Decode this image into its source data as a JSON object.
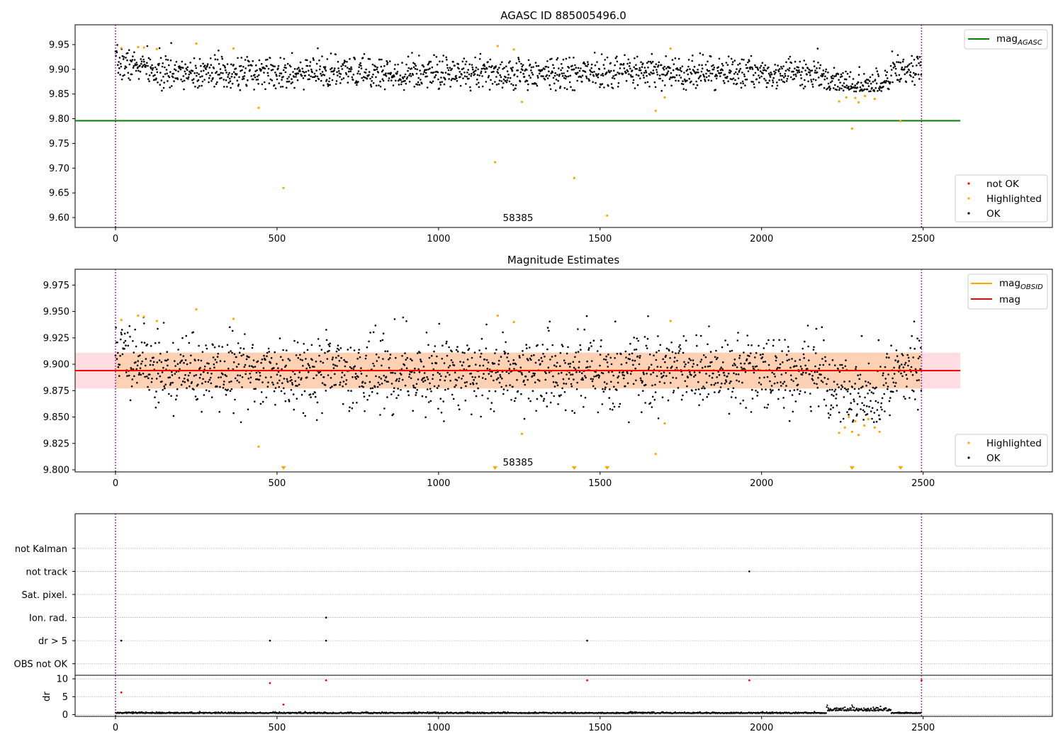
{
  "chart_data": [
    {
      "type": "scatter",
      "title": "AGASC ID 885005496.0",
      "xlim": [
        -125,
        2900
      ],
      "ylim": [
        9.58,
        9.99
      ],
      "xticks": [
        0,
        500,
        1000,
        1500,
        2000,
        2500
      ],
      "yticks": [
        9.6,
        9.65,
        9.7,
        9.75,
        9.8,
        9.85,
        9.9,
        9.95
      ],
      "vlines": [
        0,
        2495
      ],
      "annotation": {
        "text": "58385",
        "x": 1250,
        "y": 9.585
      },
      "hline": {
        "name": "mag_AGASC",
        "value": 9.796,
        "color": "#008000"
      },
      "series": [
        {
          "name": "not OK",
          "color": "#ff0000",
          "points": []
        },
        {
          "name": "Highlighted",
          "color": "#ffa500",
          "points": [
            [
              18,
              9.943
            ],
            [
              70,
              9.945
            ],
            [
              88,
              9.944
            ],
            [
              128,
              9.941
            ],
            [
              250,
              9.952
            ],
            [
              365,
              9.942
            ],
            [
              443,
              9.822
            ],
            [
              520,
              9.66
            ],
            [
              1175,
              9.712
            ],
            [
              1183,
              9.947
            ],
            [
              1233,
              9.94
            ],
            [
              1258,
              9.834
            ],
            [
              1420,
              9.68
            ],
            [
              1522,
              9.604
            ],
            [
              1672,
              9.816
            ],
            [
              1700,
              9.843
            ],
            [
              1718,
              9.942
            ],
            [
              2240,
              9.835
            ],
            [
              2262,
              9.843
            ],
            [
              2280,
              9.78
            ],
            [
              2290,
              9.842
            ],
            [
              2300,
              9.833
            ],
            [
              2320,
              9.846
            ],
            [
              2350,
              9.84
            ],
            [
              2430,
              9.795
            ]
          ]
        },
        {
          "name": "OK",
          "color": "#000000",
          "points": []
        }
      ],
      "legend": {
        "line_entries": [
          "mag_AGASC"
        ],
        "marker_entries": [
          "not OK",
          "Highlighted",
          "OK"
        ]
      }
    },
    {
      "type": "scatter",
      "title": "Magnitude Estimates",
      "xlim": [
        -125,
        2900
      ],
      "ylim": [
        9.798,
        9.99
      ],
      "xticks": [
        0,
        500,
        1000,
        1500,
        2000,
        2500
      ],
      "yticks": [
        9.8,
        9.825,
        9.85,
        9.875,
        9.9,
        9.925,
        9.95,
        9.975
      ],
      "ytick_labels": [
        "9.800",
        "9.825",
        "9.850",
        "9.875",
        "9.900",
        "9.925",
        "9.950",
        "9.975"
      ],
      "vlines": [
        0,
        2495
      ],
      "annotation": {
        "text": "58385",
        "x": 1250,
        "y": 9.8
      },
      "bands": [
        {
          "x": [
            -125,
            2615
          ],
          "y": [
            9.877,
            9.911
          ],
          "color": "#ffc0cb"
        },
        {
          "x": [
            0,
            2495
          ],
          "y": [
            9.877,
            9.911
          ],
          "color": "#ffa500"
        }
      ],
      "lines": [
        {
          "name": "mag_OBSID",
          "color": "#ffa500",
          "x": [
            0,
            2495
          ],
          "y": 9.8942
        },
        {
          "name": "mag",
          "color": "#ff0000",
          "x": [
            -125,
            2615
          ],
          "y": 9.894
        }
      ],
      "series": [
        {
          "name": "Highlighted",
          "color": "#ffa500",
          "points": [
            [
              18,
              9.942
            ],
            [
              70,
              9.946
            ],
            [
              88,
              9.945
            ],
            [
              128,
              9.941
            ],
            [
              250,
              9.952
            ],
            [
              365,
              9.943
            ],
            [
              443,
              9.822
            ],
            [
              1183,
              9.946
            ],
            [
              1233,
              9.94
            ],
            [
              1258,
              9.834
            ],
            [
              1672,
              9.815
            ],
            [
              1700,
              9.844
            ],
            [
              1718,
              9.941
            ],
            [
              2240,
              9.835
            ],
            [
              2258,
              9.84
            ],
            [
              2270,
              9.85
            ],
            [
              2280,
              9.836
            ],
            [
              2290,
              9.846
            ],
            [
              2300,
              9.833
            ],
            [
              2318,
              9.842
            ],
            [
              2330,
              9.848
            ],
            [
              2350,
              9.84
            ],
            [
              2365,
              9.836
            ]
          ]
        },
        {
          "name": "Highlighted (below axis)",
          "color": "#ffa500",
          "points": [
            [
              520,
              9.799
            ],
            [
              1175,
              9.799
            ],
            [
              1420,
              9.799
            ],
            [
              1522,
              9.799
            ],
            [
              2280,
              9.799
            ],
            [
              2430,
              9.799
            ]
          ]
        },
        {
          "name": "OK",
          "color": "#000000",
          "points": []
        }
      ],
      "legend": {
        "line_entries": [
          "mag_OBSID",
          "mag"
        ],
        "marker_entries": [
          "Highlighted",
          "OK"
        ]
      }
    },
    {
      "type": "scatter",
      "title": "",
      "xlim": [
        -125,
        2900
      ],
      "ylim": [
        -0.5,
        6.5
      ],
      "categories": [
        "OBS not OK",
        "dr > 5",
        "Ion. rad.",
        "Sat. pixel.",
        "not track",
        "not Kalman"
      ],
      "flags": [
        [
          18,
          1
        ],
        [
          478,
          1
        ],
        [
          652,
          1
        ],
        [
          652,
          2
        ],
        [
          1460,
          1
        ],
        [
          1962,
          4
        ]
      ],
      "vlines": [
        0,
        2495
      ]
    },
    {
      "type": "scatter",
      "title": "",
      "xlim": [
        -125,
        2900
      ],
      "ylim": [
        -0.5,
        11
      ],
      "xticks": [
        0,
        500,
        1000,
        1500,
        2000,
        2500
      ],
      "yticks": [
        0,
        5,
        10
      ],
      "ylabel": "dr",
      "vlines": [
        0,
        2495
      ],
      "series": [
        {
          "name": "dr (not OK)",
          "color": "#ff0000",
          "points": [
            [
              18,
              6.2
            ],
            [
              478,
              8.8
            ],
            [
              520,
              2.8
            ],
            [
              652,
              9.6
            ],
            [
              1460,
              9.6
            ],
            [
              1962,
              9.6
            ],
            [
              2495,
              9.6
            ]
          ]
        },
        {
          "name": "dr (OK)",
          "color": "#000000",
          "points": []
        }
      ]
    }
  ]
}
